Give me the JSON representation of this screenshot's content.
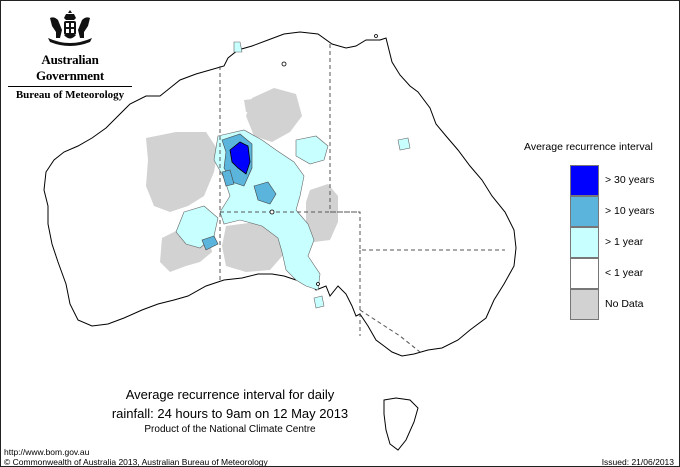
{
  "header": {
    "government": "Australian Government",
    "bureau": "Bureau of Meteorology"
  },
  "legend": {
    "title": "Average recurrence interval",
    "items": [
      {
        "label": "> 30 years",
        "color": "#0000ff"
      },
      {
        "label": "> 10 years",
        "color": "#5ab4dc"
      },
      {
        "label": "> 1 year",
        "color": "#c8ffff"
      },
      {
        "label": "< 1 year",
        "color": "#ffffff"
      },
      {
        "label": "No Data",
        "color": "#d2d2d2"
      }
    ]
  },
  "caption": {
    "line1": "Average recurrence interval for daily",
    "line2": "rainfall: 24 hours to 9am on 12 May 2013",
    "line3": "Product of the National Climate Centre"
  },
  "footer": {
    "url": "http://www.bom.gov.au",
    "copyright": "© Commonwealth of Australia 2013, Australian Bureau of Meteorology",
    "issued": "Issued: 21/06/2013"
  }
}
